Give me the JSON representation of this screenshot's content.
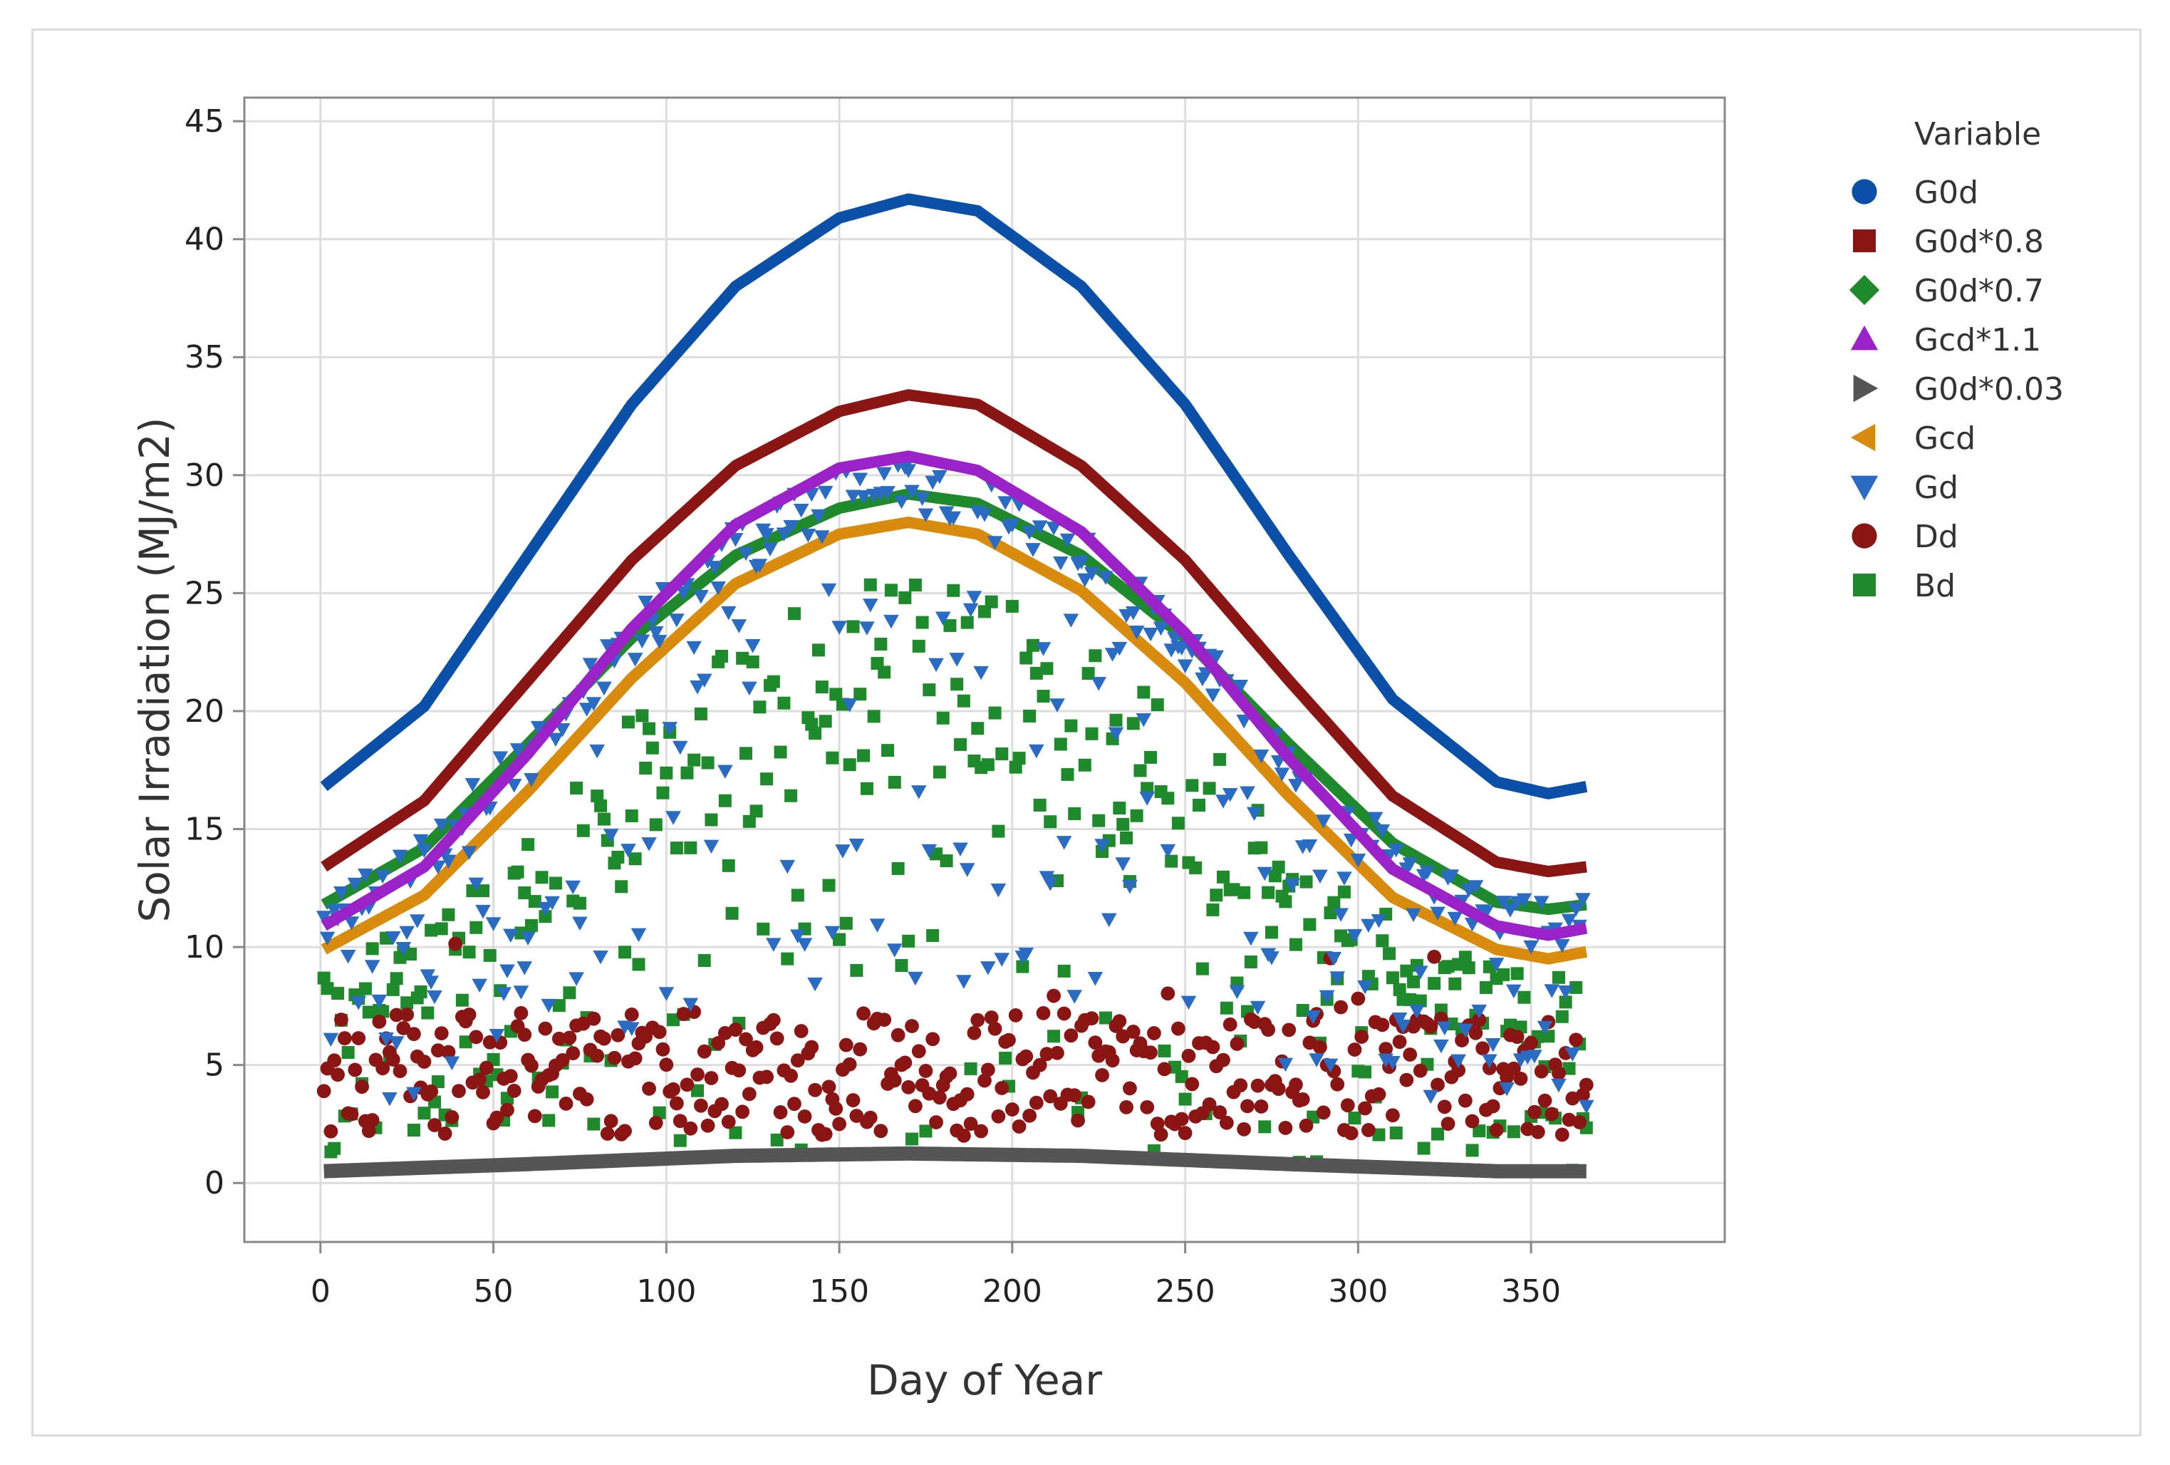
{
  "chart_data": {
    "type": "scatter",
    "title": "",
    "xlabel": "Day of Year",
    "ylabel": "Solar Irradiation (MJ/m2)",
    "xlim": [
      -22,
      406
    ],
    "ylim": [
      -2.5,
      46
    ],
    "xticks": [
      0,
      50,
      100,
      150,
      200,
      250,
      300,
      350
    ],
    "yticks": [
      0,
      5,
      10,
      15,
      20,
      25,
      30,
      35,
      40,
      45
    ],
    "grid": true,
    "legend_title": "Variable",
    "legend_position": "right",
    "series": [
      {
        "name": "G0d",
        "color": "#0a50a8",
        "marker": "circle",
        "kind": "curve",
        "points": [
          [
            1,
            16.8
          ],
          [
            30,
            20.2
          ],
          [
            60,
            26.6
          ],
          [
            90,
            33.0
          ],
          [
            120,
            38.0
          ],
          [
            150,
            40.9
          ],
          [
            170,
            41.7
          ],
          [
            190,
            41.2
          ],
          [
            220,
            38.0
          ],
          [
            250,
            33.0
          ],
          [
            280,
            26.6
          ],
          [
            310,
            20.5
          ],
          [
            340,
            17.0
          ],
          [
            355,
            16.5
          ],
          [
            366,
            16.8
          ]
        ]
      },
      {
        "name": "G0d*0.8",
        "color": "#8b1515",
        "marker": "square",
        "kind": "curve",
        "points": [
          [
            1,
            13.4
          ],
          [
            30,
            16.2
          ],
          [
            60,
            21.3
          ],
          [
            90,
            26.4
          ],
          [
            120,
            30.4
          ],
          [
            150,
            32.7
          ],
          [
            170,
            33.4
          ],
          [
            190,
            33.0
          ],
          [
            220,
            30.4
          ],
          [
            250,
            26.4
          ],
          [
            280,
            21.3
          ],
          [
            310,
            16.4
          ],
          [
            340,
            13.6
          ],
          [
            355,
            13.2
          ],
          [
            366,
            13.4
          ]
        ]
      },
      {
        "name": "G0d*0.7",
        "color": "#1e8a2c",
        "marker": "diamond",
        "kind": "curve",
        "points": [
          [
            1,
            11.8
          ],
          [
            30,
            14.2
          ],
          [
            60,
            18.6
          ],
          [
            90,
            23.1
          ],
          [
            120,
            26.6
          ],
          [
            150,
            28.6
          ],
          [
            170,
            29.2
          ],
          [
            190,
            28.8
          ],
          [
            220,
            26.6
          ],
          [
            250,
            23.1
          ],
          [
            280,
            18.6
          ],
          [
            310,
            14.4
          ],
          [
            340,
            11.9
          ],
          [
            355,
            11.6
          ],
          [
            366,
            11.8
          ]
        ]
      },
      {
        "name": "Gcd*1.1",
        "color": "#9b22c8",
        "marker": "triangle-up",
        "kind": "curve",
        "points": [
          [
            1,
            10.9
          ],
          [
            30,
            13.4
          ],
          [
            60,
            18.2
          ],
          [
            90,
            23.5
          ],
          [
            120,
            27.9
          ],
          [
            150,
            30.3
          ],
          [
            170,
            30.8
          ],
          [
            190,
            30.2
          ],
          [
            220,
            27.6
          ],
          [
            250,
            23.3
          ],
          [
            280,
            18.0
          ],
          [
            310,
            13.3
          ],
          [
            340,
            10.9
          ],
          [
            355,
            10.5
          ],
          [
            366,
            10.8
          ]
        ]
      },
      {
        "name": "G0d*0.03",
        "color": "#555555",
        "marker": "triangle-right",
        "kind": "curve",
        "points": [
          [
            1,
            0.5
          ],
          [
            60,
            0.8
          ],
          [
            120,
            1.15
          ],
          [
            170,
            1.25
          ],
          [
            220,
            1.15
          ],
          [
            280,
            0.8
          ],
          [
            340,
            0.5
          ],
          [
            366,
            0.5
          ]
        ]
      },
      {
        "name": "Gcd",
        "color": "#d98b0e",
        "marker": "triangle-left",
        "kind": "curve",
        "points": [
          [
            1,
            9.9
          ],
          [
            30,
            12.2
          ],
          [
            60,
            16.6
          ],
          [
            90,
            21.4
          ],
          [
            120,
            25.4
          ],
          [
            150,
            27.5
          ],
          [
            170,
            28.0
          ],
          [
            190,
            27.5
          ],
          [
            220,
            25.1
          ],
          [
            250,
            21.2
          ],
          [
            280,
            16.4
          ],
          [
            310,
            12.1
          ],
          [
            340,
            9.9
          ],
          [
            355,
            9.5
          ],
          [
            366,
            9.8
          ]
        ]
      },
      {
        "name": "Gd",
        "color": "#2a6cc4",
        "marker": "triangle-down",
        "kind": "scatter",
        "n": 366,
        "seed": 11
      },
      {
        "name": "Dd",
        "color": "#8b1515",
        "marker": "circle",
        "kind": "scatter",
        "n": 366,
        "seed": 23
      },
      {
        "name": "Bd",
        "color": "#1e8a2c",
        "marker": "square",
        "kind": "scatter",
        "n": 366,
        "seed": 37
      }
    ]
  }
}
